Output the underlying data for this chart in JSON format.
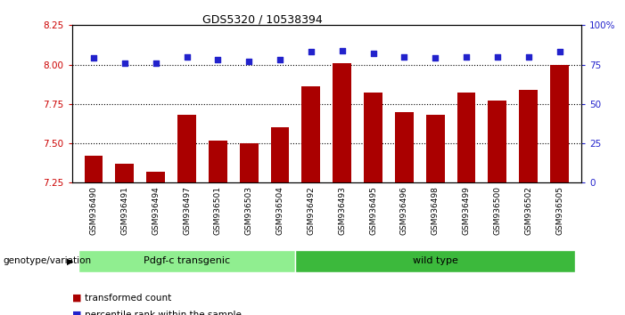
{
  "title": "GDS5320 / 10538394",
  "samples": [
    "GSM936490",
    "GSM936491",
    "GSM936494",
    "GSM936497",
    "GSM936501",
    "GSM936503",
    "GSM936504",
    "GSM936492",
    "GSM936493",
    "GSM936495",
    "GSM936496",
    "GSM936498",
    "GSM936499",
    "GSM936500",
    "GSM936502",
    "GSM936505"
  ],
  "bar_values": [
    7.42,
    7.37,
    7.32,
    7.68,
    7.52,
    7.5,
    7.6,
    7.86,
    8.01,
    7.82,
    7.7,
    7.68,
    7.82,
    7.77,
    7.84,
    8.0
  ],
  "percentile_values": [
    79,
    76,
    76,
    80,
    78,
    77,
    78,
    83,
    84,
    82,
    80,
    79,
    80,
    80,
    80,
    83
  ],
  "groups": [
    {
      "label": "Pdgf-c transgenic",
      "start": 0,
      "end": 6,
      "color": "#90EE90"
    },
    {
      "label": "wild type",
      "start": 7,
      "end": 15,
      "color": "#3CB93C"
    }
  ],
  "bar_color": "#AA0000",
  "dot_color": "#2222CC",
  "ylim_left": [
    7.25,
    8.25
  ],
  "ylim_right": [
    0,
    100
  ],
  "yticks_left": [
    7.25,
    7.5,
    7.75,
    8.0,
    8.25
  ],
  "yticks_right": [
    0,
    25,
    50,
    75,
    100
  ],
  "ytick_labels_right": [
    "0",
    "25",
    "50",
    "75",
    "100%"
  ],
  "grid_values": [
    7.5,
    7.75,
    8.0
  ],
  "background_color": "#ffffff",
  "tick_area_color": "#d3d3d3",
  "group_label": "genotype/variation",
  "legend_items": [
    {
      "label": "transformed count",
      "color": "#AA0000"
    },
    {
      "label": "percentile rank within the sample",
      "color": "#2222CC"
    }
  ]
}
